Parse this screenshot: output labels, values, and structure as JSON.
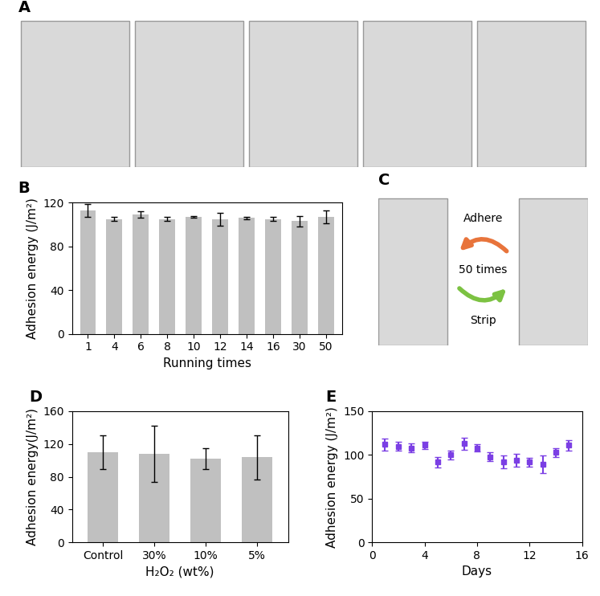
{
  "chart_data": [
    {
      "type": "image",
      "title": "A"
    },
    {
      "type": "bar",
      "title": "B",
      "categories": [
        "1",
        "4",
        "6",
        "8",
        "10",
        "12",
        "14",
        "16",
        "30",
        "50"
      ],
      "values": [
        113,
        105,
        109,
        105,
        107,
        105,
        106,
        105,
        103,
        107
      ],
      "errors": [
        6,
        2,
        3,
        2,
        1,
        6,
        1,
        2,
        5,
        6
      ],
      "x_label": "Running times",
      "y_label": "Adhesion energy (J/m²)",
      "color": "#c0c0c0",
      "ylim": [
        0,
        120
      ],
      "yticks": [
        0,
        40,
        80,
        120
      ]
    },
    {
      "type": "image",
      "title": "C",
      "annotations": [
        "Adhere",
        "50 times",
        "Strip"
      ]
    },
    {
      "type": "bar",
      "title": "D",
      "categories": [
        "Control",
        "30%",
        "10%",
        "5%"
      ],
      "values": [
        110,
        108,
        102,
        104
      ],
      "errors": [
        21,
        34,
        13,
        27
      ],
      "x_label": "H₂O₂ (wt%)",
      "y_label": "Adhesion energy(J/m²)",
      "color": "#c0c0c0",
      "ylim": [
        0,
        160
      ],
      "yticks": [
        0,
        40,
        80,
        120,
        160
      ]
    },
    {
      "type": "scatter",
      "title": "E",
      "x": [
        1,
        2,
        3,
        4,
        5,
        6,
        7,
        8,
        9,
        10,
        11,
        12,
        13,
        14,
        15
      ],
      "values": [
        112,
        110,
        108,
        111,
        92,
        100,
        113,
        108,
        98,
        92,
        94,
        92,
        89,
        103,
        111
      ],
      "errors": [
        7,
        5,
        5,
        4,
        6,
        5,
        7,
        4,
        5,
        7,
        7,
        5,
        10,
        5,
        6
      ],
      "x_label": "Days",
      "y_label": "Adhesion energy (J/m²)",
      "color": "#7b3fe4",
      "marker": "square",
      "xlim": [
        0,
        16
      ],
      "xticks": [
        0,
        4,
        8,
        12,
        16
      ],
      "ylim": [
        0,
        150
      ],
      "yticks": [
        0,
        50,
        100,
        150
      ]
    }
  ]
}
